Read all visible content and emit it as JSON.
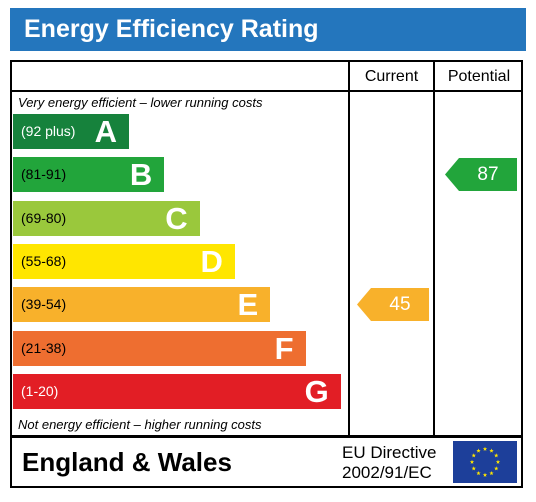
{
  "title": "Energy Efficiency Rating",
  "columns": {
    "current": "Current",
    "potential": "Potential"
  },
  "captions": {
    "top": "Very energy efficient – lower running costs",
    "bottom": "Not energy efficient – higher running costs"
  },
  "bands": [
    {
      "range": "(92 plus)",
      "letter": "A",
      "color": "#16823c"
    },
    {
      "range": "(81-91)",
      "letter": "B",
      "color": "#22a53b"
    },
    {
      "range": "(69-80)",
      "letter": "C",
      "color": "#9ac83c"
    },
    {
      "range": "(55-68)",
      "letter": "D",
      "color": "#ffe600"
    },
    {
      "range": "(39-54)",
      "letter": "E",
      "color": "#f8b12b"
    },
    {
      "range": "(21-38)",
      "letter": "F",
      "color": "#ee6e30"
    },
    {
      "range": "(1-20)",
      "letter": "G",
      "color": "#e21e25"
    }
  ],
  "current": {
    "value": "45",
    "band": "E",
    "color": "#f8b12b"
  },
  "potential": {
    "value": "87",
    "band": "B",
    "color": "#22a53b"
  },
  "footer": {
    "country": "England & Wales",
    "directive_line1": "EU Directive",
    "directive_line2": "2002/91/EC",
    "flag_icon": "eu-flag-icon"
  }
}
